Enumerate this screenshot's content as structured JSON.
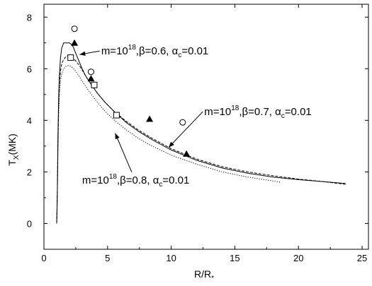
{
  "chart_data": {
    "type": "line",
    "xlabel": "R/R",
    "xlabel_sub": "*",
    "ylabel": "T",
    "ylabel_sub": "X",
    "ylabel_unit": "(MK)",
    "xlim": [
      0,
      25.5
    ],
    "ylim": [
      -1,
      8.5
    ],
    "xticks": [
      0,
      5,
      10,
      15,
      20,
      25
    ],
    "yticks": [
      0,
      2,
      4,
      6,
      8
    ],
    "grid": false,
    "legend": "none",
    "series": [
      {
        "name": "",
        "style": "solid",
        "x": [
          1.0,
          1.02,
          1.05,
          1.1,
          1.15,
          1.2,
          1.3,
          1.4,
          1.55,
          1.7,
          1.85,
          2.0,
          2.15,
          2.3,
          2.5,
          2.75,
          3.0,
          3.3,
          3.7,
          4.2,
          4.8,
          5.5,
          6.5,
          7.5,
          8.5,
          10.0,
          12.0,
          14.0,
          16.0,
          18.0,
          20.0,
          22.0,
          23.7
        ],
        "y": [
          0.0,
          0.3,
          1.2,
          3.4,
          4.8,
          5.6,
          6.4,
          6.8,
          7.0,
          7.0,
          7.0,
          7.0,
          6.95,
          6.85,
          6.6,
          6.3,
          6.0,
          5.7,
          5.4,
          5.05,
          4.7,
          4.35,
          3.9,
          3.55,
          3.25,
          2.85,
          2.45,
          2.15,
          1.95,
          1.8,
          1.7,
          1.62,
          1.55
        ]
      },
      {
        "name": "",
        "style": "dashed",
        "x": [
          1.0,
          1.05,
          1.1,
          1.15,
          1.2,
          1.3,
          1.4,
          1.55,
          1.7,
          1.85,
          2.0,
          2.15,
          2.3,
          2.5,
          2.75,
          3.0,
          3.3,
          3.7,
          4.2,
          4.8,
          5.5,
          6.5,
          7.5,
          8.5,
          10.0,
          12.0,
          14.0,
          16.0,
          18.0,
          20.0,
          22.0,
          23.7
        ],
        "y": [
          0.0,
          1.2,
          3.2,
          4.5,
          5.3,
          5.9,
          6.2,
          6.35,
          6.45,
          6.5,
          6.5,
          6.45,
          6.4,
          6.3,
          6.15,
          5.95,
          5.7,
          5.4,
          5.05,
          4.7,
          4.35,
          3.95,
          3.6,
          3.3,
          2.9,
          2.5,
          2.2,
          2.0,
          1.85,
          1.72,
          1.62,
          1.52
        ]
      },
      {
        "name": "",
        "style": "dotted",
        "x": [
          1.0,
          1.05,
          1.1,
          1.15,
          1.2,
          1.3,
          1.4,
          1.55,
          1.7,
          1.85,
          2.0,
          2.15,
          2.3,
          2.5,
          2.75,
          3.0,
          3.3,
          3.7,
          4.2,
          4.8,
          5.5,
          6.5,
          7.5,
          8.5,
          10.0,
          12.0,
          14.0,
          16.0,
          18.6
        ],
        "y": [
          0.0,
          1.0,
          2.8,
          4.1,
          4.9,
          5.5,
          5.8,
          6.0,
          6.08,
          6.12,
          6.12,
          6.08,
          6.02,
          5.9,
          5.72,
          5.52,
          5.3,
          5.02,
          4.7,
          4.35,
          4.02,
          3.62,
          3.28,
          3.0,
          2.65,
          2.3,
          2.0,
          1.8,
          1.6
        ]
      }
    ],
    "markers": [
      {
        "shape": "circle",
        "points": [
          [
            2.4,
            7.55
          ],
          [
            3.7,
            5.88
          ],
          [
            10.9,
            3.92
          ]
        ]
      },
      {
        "shape": "triangle",
        "points": [
          [
            2.4,
            7.0
          ],
          [
            3.7,
            5.62
          ],
          [
            8.3,
            4.05
          ],
          [
            11.2,
            2.7
          ]
        ]
      },
      {
        "shape": "square",
        "points": [
          [
            2.1,
            6.43
          ],
          [
            3.95,
            5.37
          ],
          [
            5.7,
            4.2
          ]
        ]
      }
    ],
    "annotations": [
      {
        "text_m": "m=10",
        "sup": "18",
        "text_beta": ",β=0.6, α",
        "sub": "c",
        "text_tail": "=0.01",
        "x": 4.5,
        "y": 6.55,
        "arrow_to": [
          2.8,
          6.55
        ]
      },
      {
        "text_m": "m=10",
        "sup": "18",
        "text_beta": ",β=0.7, α",
        "sub": "c",
        "text_tail": "=0.01",
        "x": 12.6,
        "y": 4.2,
        "arrow_to": [
          9.8,
          2.95
        ]
      },
      {
        "text_m": "m=10",
        "sup": "18",
        "text_beta": ",β=0.8, α",
        "sub": "c",
        "text_tail": "=0.01",
        "x": 3.0,
        "y": 1.55,
        "arrow_to": [
          5.6,
          3.5
        ]
      }
    ]
  }
}
